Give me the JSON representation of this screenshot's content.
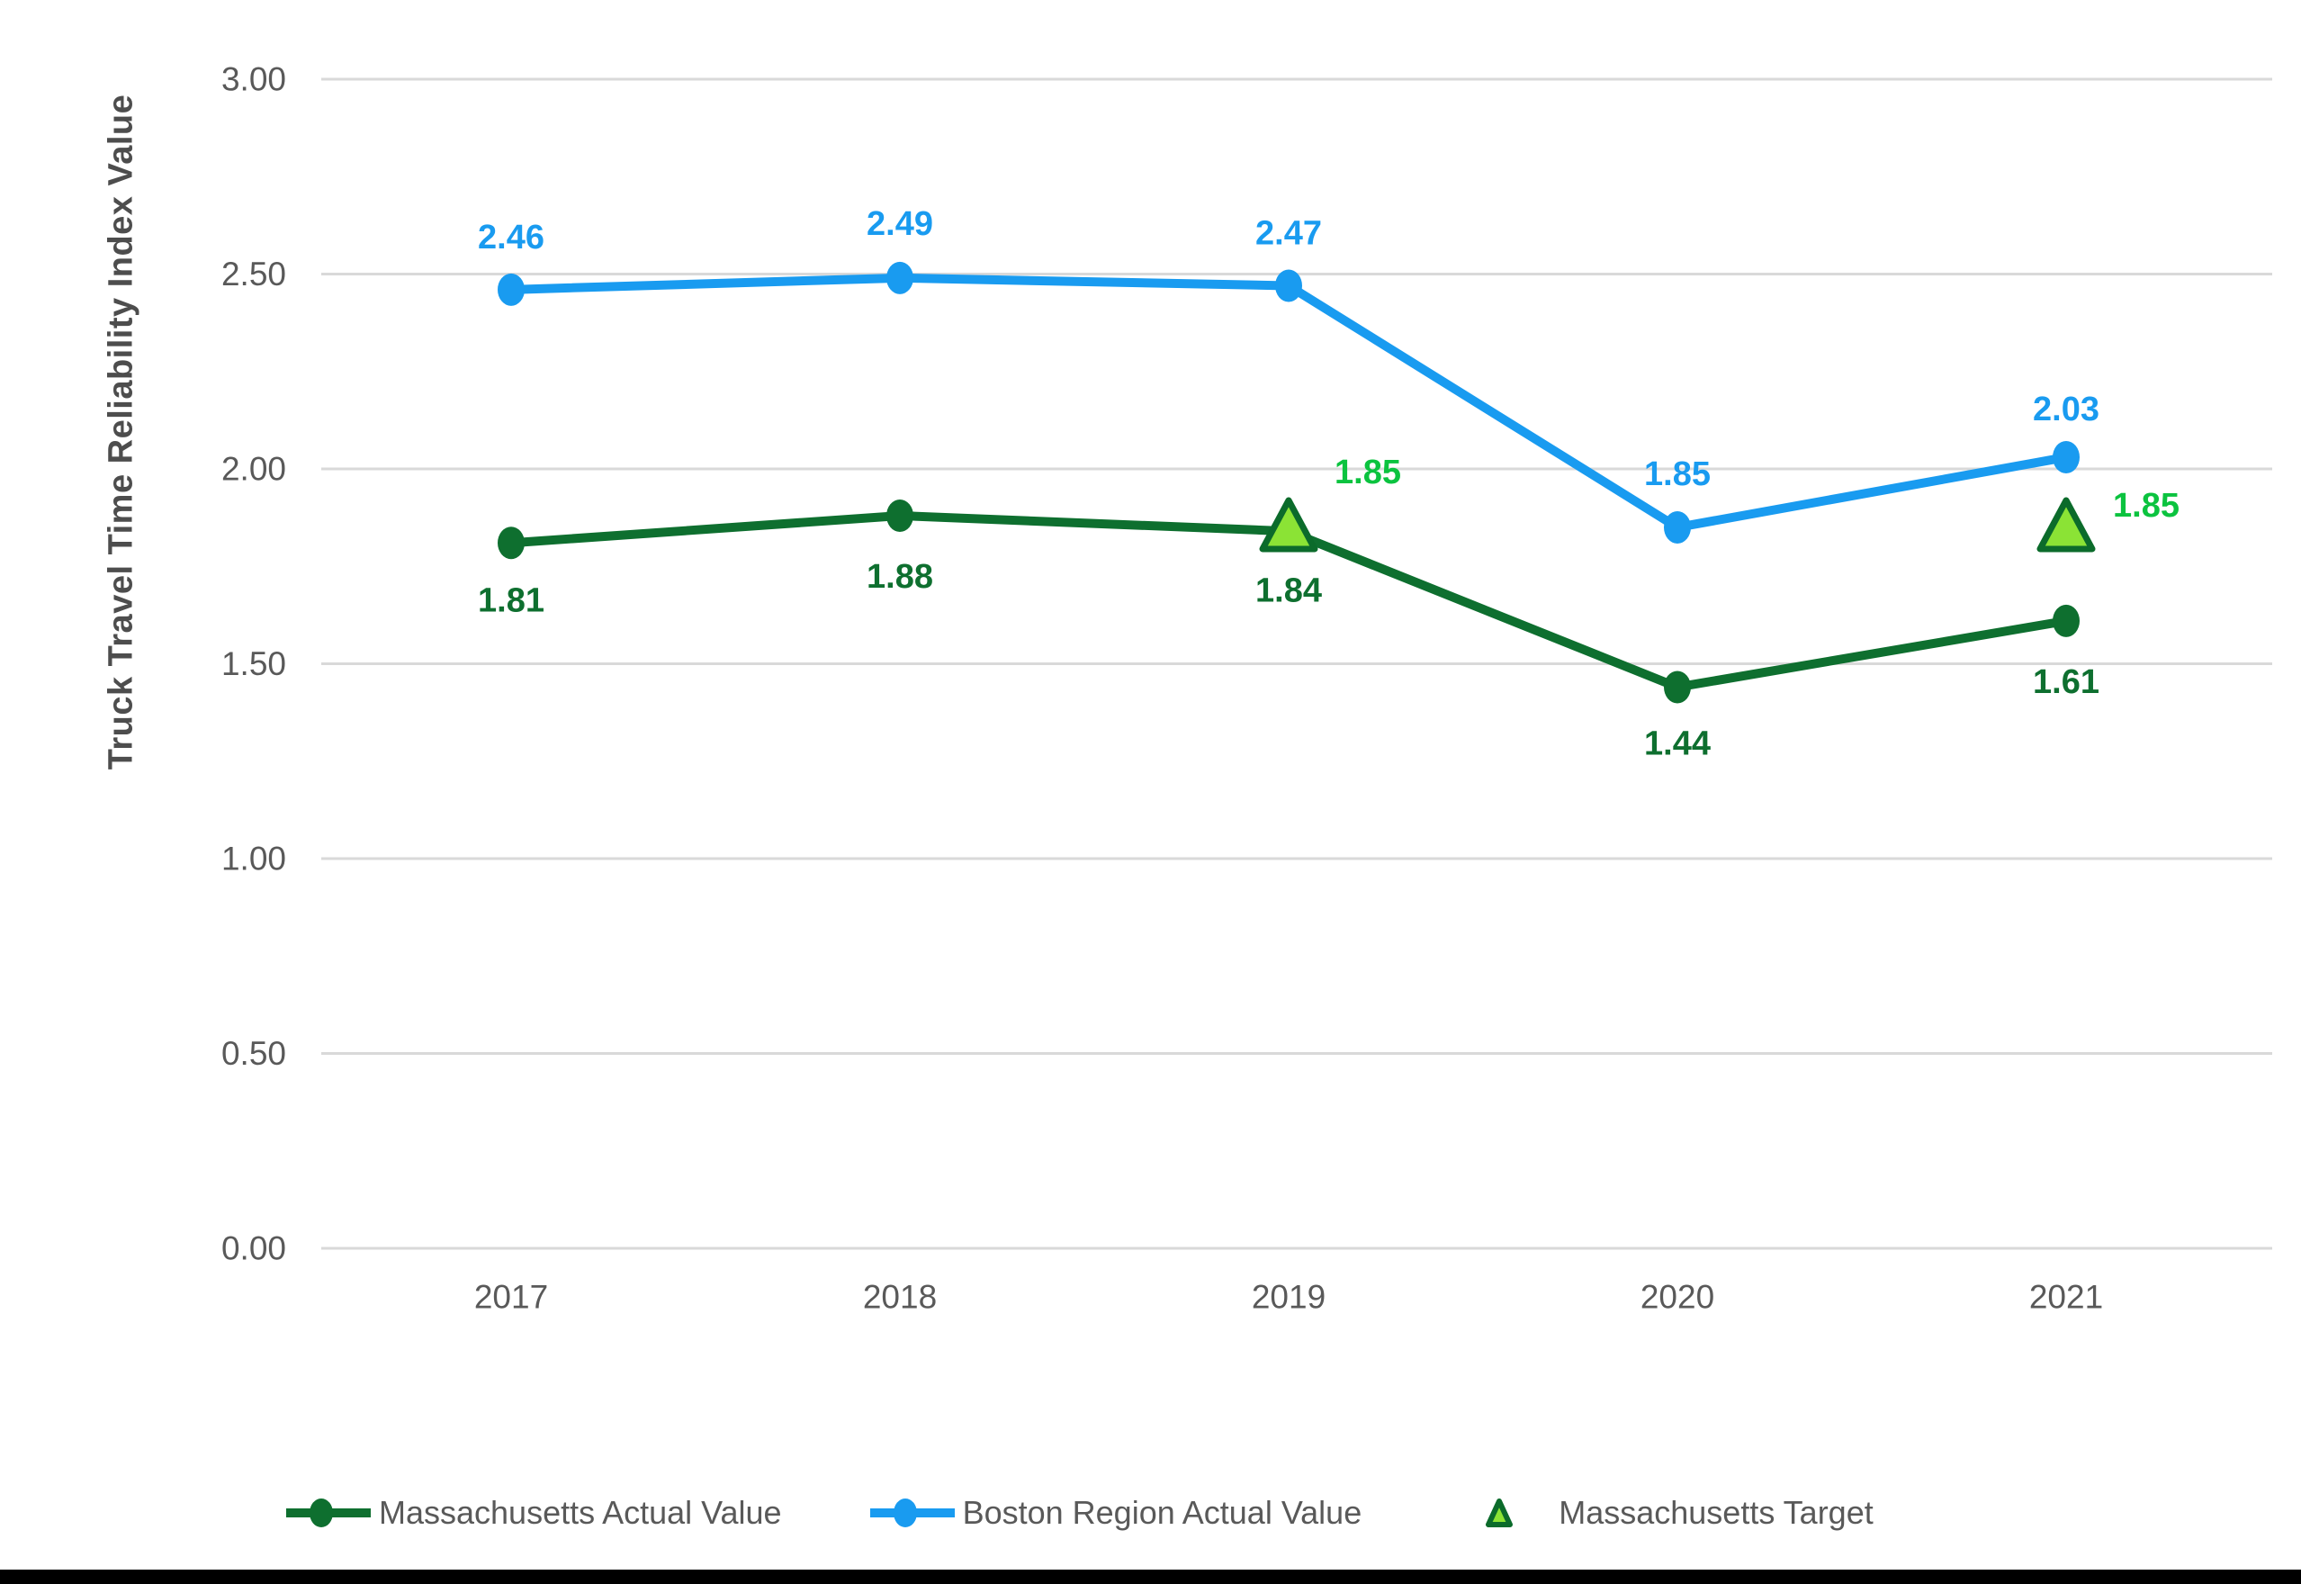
{
  "chart_data": {
    "type": "line",
    "title": "",
    "xlabel": "",
    "ylabel": "Truck Travel Time Reliability Index Value",
    "categories": [
      "2017",
      "2018",
      "2019",
      "2020",
      "2021"
    ],
    "ylim": [
      0,
      3
    ],
    "grid": "horizontal",
    "legend_position": "bottom",
    "yticks": {
      "values": [
        3.0,
        2.5,
        2.0,
        1.5,
        1.0,
        0.5,
        0.0
      ],
      "labels": [
        "3.00",
        "2.50",
        "2.00",
        "1.50",
        "1.00",
        "0.50",
        "0.00"
      ]
    },
    "series": [
      {
        "name": "Massachusetts Actual Value",
        "type": "line",
        "marker": "circle",
        "color": "#0E6F2F",
        "label_color": "#0E6F2F",
        "values": [
          1.81,
          1.88,
          1.84,
          1.44,
          1.61
        ],
        "labels": [
          "1.81",
          "1.88",
          "1.84",
          "1.44",
          "1.61"
        ],
        "label_offsets": [
          [
            0,
            64
          ],
          [
            0,
            68
          ],
          [
            0,
            66
          ],
          [
            0,
            63
          ],
          [
            0,
            68
          ]
        ]
      },
      {
        "name": "Boston Region Actual Value",
        "type": "line",
        "marker": "circle",
        "color": "#199BF0",
        "label_color": "#199BF0",
        "values": [
          2.46,
          2.49,
          2.47,
          1.85,
          2.03
        ],
        "labels": [
          "2.46",
          "2.49",
          "2.47",
          "1.85",
          "2.03"
        ],
        "label_offsets": [
          [
            0,
            -58
          ],
          [
            0,
            -60
          ],
          [
            0,
            -58
          ],
          [
            0,
            -59
          ],
          [
            0,
            -53
          ]
        ]
      },
      {
        "name": "Massachusetts Target",
        "type": "scatter",
        "marker": "triangle",
        "color": "#0B6B2B",
        "marker_fill": "#8BE335",
        "label_color": "#0BC33F",
        "values": [
          null,
          null,
          1.85,
          null,
          1.85
        ],
        "labels": [
          null,
          null,
          "1.85",
          null,
          "1.85"
        ],
        "label_offsets": [
          null,
          null,
          [
            88,
            -61
          ],
          null,
          [
            89,
            -24
          ]
        ]
      }
    ]
  },
  "styles": {
    "axis_text_color": "#595959",
    "axis_title_color": "#4d4d4d",
    "grid_color": "#D9D9D9",
    "legend_text_color": "#595959",
    "background": "#FFFFFF",
    "bottom_bar_color": "#000000"
  }
}
